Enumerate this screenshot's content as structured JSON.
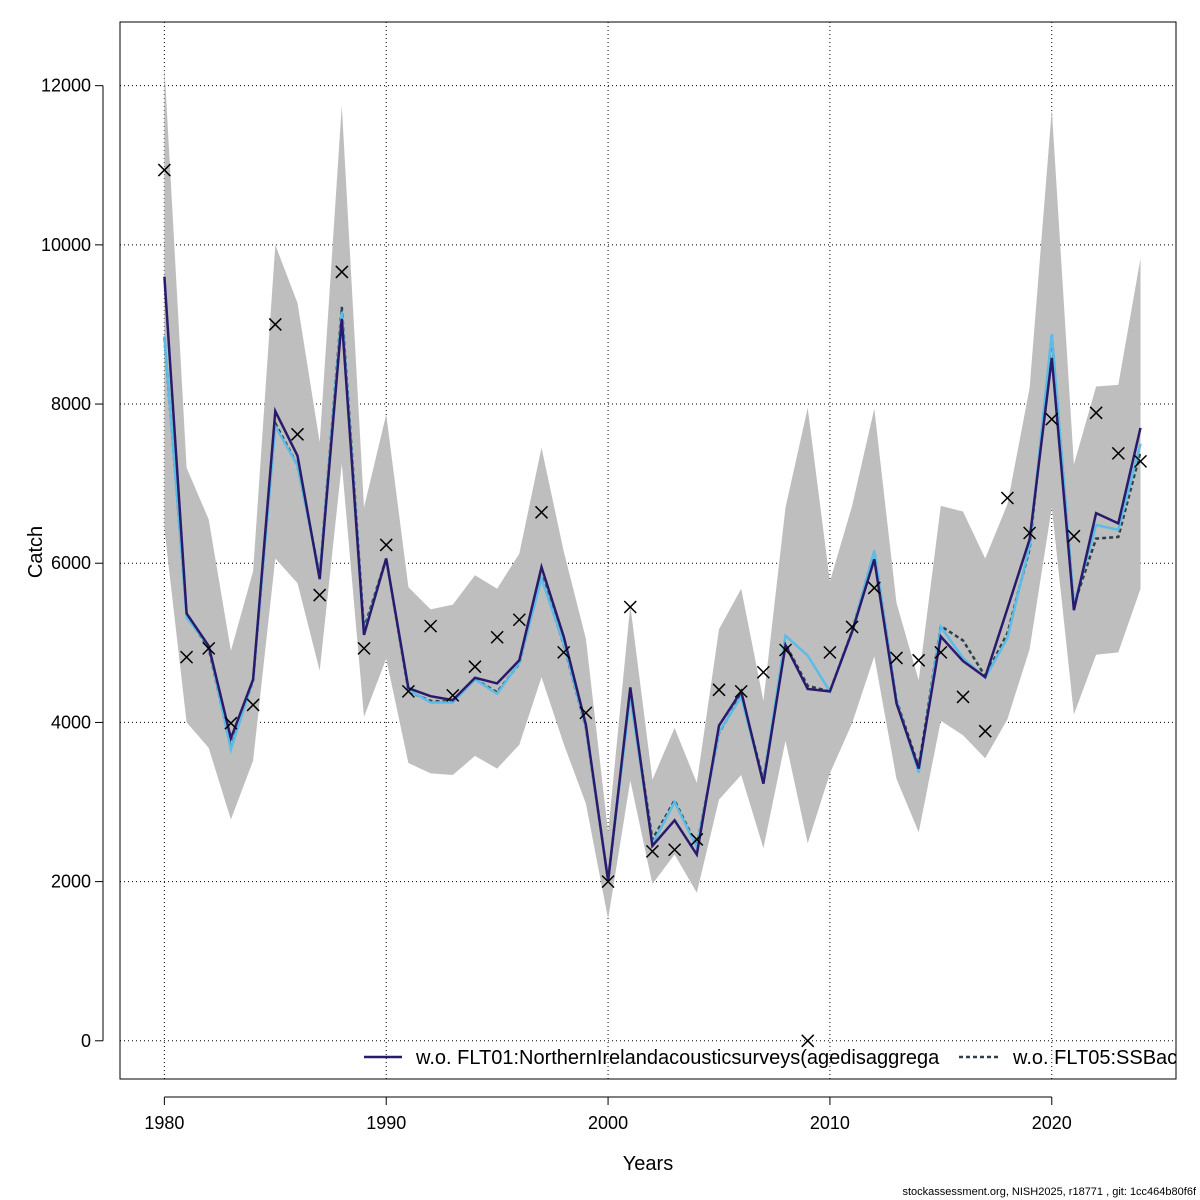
{
  "chart_data": {
    "type": "line",
    "xlabel": "Years",
    "ylabel": "Catch",
    "xlim": [
      1978,
      2025.6
    ],
    "ylim": [
      -480,
      12800
    ],
    "x_ticks": [
      1980,
      1990,
      2000,
      2010,
      2020
    ],
    "y_ticks": [
      0,
      2000,
      4000,
      6000,
      8000,
      10000,
      12000
    ],
    "grid": true,
    "legend_position": "bottom",
    "colors": {
      "band": "#bebebe",
      "series_1": "#2a1a6b",
      "series_2": "#5bbce6",
      "series_3": "#2e3f4a",
      "points": "#000000",
      "grid": "#000000"
    },
    "x": [
      1980,
      1981,
      1982,
      1983,
      1984,
      1985,
      1986,
      1987,
      1988,
      1989,
      1990,
      1991,
      1992,
      1993,
      1994,
      1995,
      1996,
      1997,
      1998,
      1999,
      2000,
      2001,
      2002,
      2003,
      2004,
      2005,
      2006,
      2007,
      2008,
      2009,
      2010,
      2011,
      2012,
      2013,
      2014,
      2015,
      2016,
      2017,
      2018,
      2019,
      2020,
      2021,
      2022,
      2023,
      2024
    ],
    "band_upper": [
      12250,
      7200,
      6550,
      4900,
      5900,
      10000,
      9270,
      7520,
      11750,
      6700,
      7870,
      5700,
      5420,
      5480,
      5850,
      5680,
      6120,
      7450,
      6150,
      5050,
      2620,
      5470,
      3280,
      3930,
      3240,
      5170,
      5680,
      4270,
      6700,
      7950,
      5770,
      6720,
      7940,
      5500,
      4530,
      6720,
      6650,
      6060,
      6740,
      8200,
      11700,
      7240,
      8220,
      8240,
      9830
    ],
    "band_lower": [
      6430,
      4000,
      3680,
      2780,
      3520,
      6060,
      5750,
      4650,
      7250,
      4070,
      4800,
      3490,
      3360,
      3340,
      3580,
      3420,
      3720,
      4570,
      3730,
      2980,
      1530,
      3270,
      1970,
      2340,
      1860,
      3030,
      3340,
      2420,
      3770,
      2480,
      3360,
      3990,
      4830,
      3290,
      2620,
      4020,
      3840,
      3550,
      4040,
      4920,
      6700,
      4100,
      4850,
      4880,
      5680
    ],
    "series": [
      {
        "name": "w.o. FLT01:NorthernIrelandacousticsurveys(agedisaggrega",
        "line_style": "solid",
        "values": [
          9600,
          5370,
          4960,
          3800,
          4540,
          7910,
          7350,
          5800,
          9070,
          5100,
          6060,
          4430,
          4330,
          4280,
          4560,
          4490,
          4780,
          5950,
          5080,
          3970,
          2010,
          4440,
          2450,
          2770,
          2340,
          3960,
          4390,
          3230,
          4970,
          4420,
          4390,
          5140,
          6050,
          4240,
          3420,
          5080,
          4770,
          4570,
          5430,
          6300,
          8580,
          5410,
          6630,
          6500,
          7700
        ]
      },
      {
        "name": "w.o. FLT05:SSBac",
        "line_style": "dashed",
        "values": [
          8830,
          5350,
          4930,
          3680,
          4530,
          7760,
          7230,
          5860,
          9220,
          5180,
          6060,
          4390,
          4270,
          4260,
          4540,
          4380,
          4740,
          5840,
          4980,
          3930,
          2020,
          4370,
          2530,
          3020,
          2450,
          3870,
          4340,
          3280,
          4980,
          4460,
          4390,
          5150,
          6150,
          4280,
          3440,
          5210,
          5030,
          4580,
          5120,
          6180,
          8860,
          5470,
          6310,
          6330,
          7400
        ]
      },
      {
        "name": "",
        "line_style": "solid",
        "values": [
          8850,
          5320,
          4960,
          3660,
          4540,
          7720,
          7230,
          5850,
          9160,
          5120,
          6060,
          4410,
          4250,
          4250,
          4540,
          4360,
          4750,
          5810,
          4990,
          3940,
          2020,
          4330,
          2470,
          3000,
          2430,
          3880,
          4320,
          3250,
          5090,
          4840,
          4390,
          5140,
          6160,
          4270,
          3370,
          5200,
          4810,
          4560,
          5060,
          6220,
          8880,
          5480,
          6480,
          6420,
          7500
        ]
      }
    ],
    "observed": [
      10940,
      4820,
      4930,
      3990,
      4220,
      9000,
      7620,
      5600,
      9660,
      4930,
      6230,
      4390,
      5210,
      4340,
      4700,
      5070,
      5290,
      6640,
      4880,
      4120,
      2000,
      5450,
      2380,
      2400,
      2530,
      4410,
      4390,
      4630,
      4910,
      0,
      4880,
      5200,
      5690,
      4810,
      4780,
      4880,
      4320,
      3890,
      6820,
      6380,
      7810,
      6340,
      7890,
      7380,
      7280
    ]
  },
  "legend": {
    "item_1": "w.o. FLT01:NorthernIrelandacousticsurveys(agedisaggrega",
    "item_2": "w.o. FLT05:SSBac"
  },
  "footer": "stockassessment.org, NISH2025, r18771 , git: 1cc464b80f6f"
}
